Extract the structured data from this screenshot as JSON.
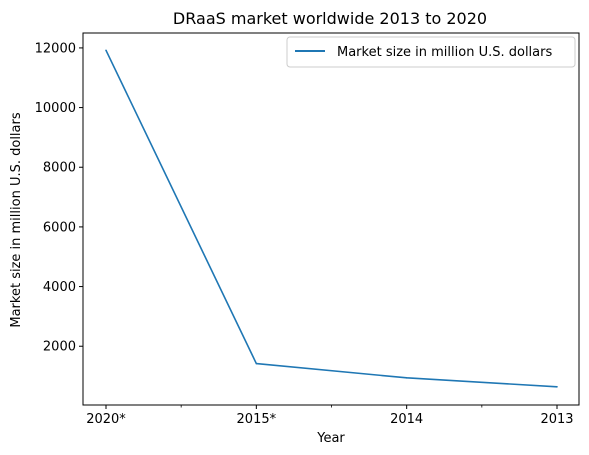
{
  "chart_data": {
    "type": "line",
    "title": "DRaaS market worldwide 2013 to 2020",
    "xlabel": "Year",
    "ylabel": "Market size in million U.S. dollars",
    "categories": [
      "2020*",
      "2015*",
      "2014",
      "2013"
    ],
    "series": [
      {
        "name": "Market size in million U.S. dollars",
        "values": [
          11920,
          1420,
          940,
          640
        ],
        "color": "#1f77b4"
      }
    ],
    "ylim": [
      30,
      12500
    ],
    "yticks": [
      2000,
      4000,
      6000,
      8000,
      10000,
      12000
    ],
    "legend": "top-right",
    "grid": false
  }
}
